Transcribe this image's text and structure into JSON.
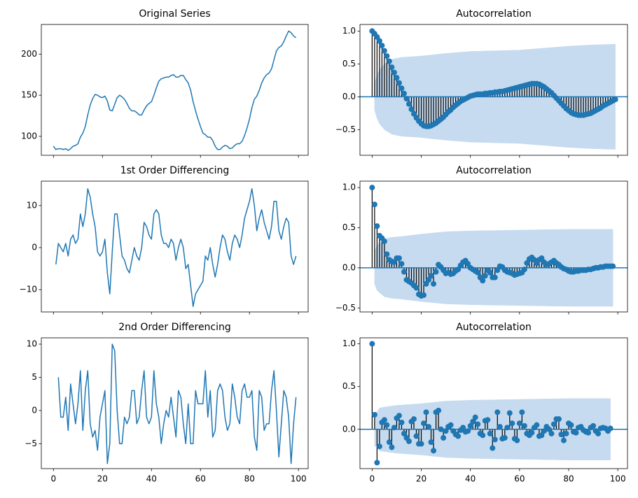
{
  "chart_data": [
    {
      "type": "line",
      "title": "Original Series",
      "color": "#1f77b4",
      "x": [
        0,
        1,
        2,
        3,
        4,
        5,
        6,
        7,
        8,
        9,
        10,
        11,
        12,
        13,
        14,
        15,
        16,
        17,
        18,
        19,
        20,
        21,
        22,
        23,
        24,
        25,
        26,
        27,
        28,
        29,
        30,
        31,
        32,
        33,
        34,
        35,
        36,
        37,
        38,
        39,
        40,
        41,
        42,
        43,
        44,
        45,
        46,
        47,
        48,
        49,
        50,
        51,
        52,
        53,
        54,
        55,
        56,
        57,
        58,
        59,
        60,
        61,
        62,
        63,
        64,
        65,
        66,
        67,
        68,
        69,
        70,
        71,
        72,
        73,
        74,
        75,
        76,
        77,
        78,
        79,
        80,
        81,
        82,
        83,
        84,
        85,
        86,
        87,
        88,
        89,
        90,
        91,
        92,
        93,
        94,
        95,
        96,
        97,
        98,
        99
      ],
      "values": [
        88,
        84,
        85,
        85,
        84,
        85,
        83,
        85,
        88,
        89,
        91,
        99,
        104,
        112,
        126,
        138,
        146,
        151,
        150,
        148,
        147,
        149,
        143,
        132,
        131,
        139,
        147,
        150,
        148,
        145,
        140,
        134,
        131,
        131,
        129,
        126,
        126,
        132,
        137,
        140,
        142,
        150,
        159,
        167,
        170,
        171,
        172,
        172,
        174,
        175,
        172,
        172,
        174,
        174,
        169,
        165,
        156,
        142,
        131,
        121,
        112,
        104,
        102,
        99,
        99,
        95,
        88,
        84,
        84,
        87,
        89,
        88,
        85,
        86,
        89,
        91,
        91,
        94,
        101,
        110,
        121,
        135,
        145,
        149,
        156,
        165,
        171,
        175,
        177,
        182,
        193,
        204,
        208,
        210,
        215,
        222,
        228,
        226,
        222,
        220
      ],
      "xlim": [
        -4.95,
        103.95
      ],
      "ylim": [
        77,
        236
      ],
      "xticks": [
        0,
        20,
        40,
        60,
        80,
        100
      ],
      "yticks": [
        100,
        150,
        200
      ],
      "show_xtick_labels": false
    },
    {
      "type": "stem",
      "title": "Autocorrelation",
      "color": "#1f77b4",
      "stem_color": "#000000",
      "x": [
        0,
        1,
        2,
        3,
        4,
        5,
        6,
        7,
        8,
        9,
        10,
        11,
        12,
        13,
        14,
        15,
        16,
        17,
        18,
        19,
        20,
        21,
        22,
        23,
        24,
        25,
        26,
        27,
        28,
        29,
        30,
        31,
        32,
        33,
        34,
        35,
        36,
        37,
        38,
        39,
        40,
        41,
        42,
        43,
        44,
        45,
        46,
        47,
        48,
        49,
        50,
        51,
        52,
        53,
        54,
        55,
        56,
        57,
        58,
        59,
        60,
        61,
        62,
        63,
        64,
        65,
        66,
        67,
        68,
        69,
        70,
        71,
        72,
        73,
        74,
        75,
        76,
        77,
        78,
        79,
        80,
        81,
        82,
        83,
        84,
        85,
        86,
        87,
        88,
        89,
        90,
        91,
        92,
        93,
        94,
        95,
        96,
        97,
        98,
        99
      ],
      "values": [
        1.0,
        0.96,
        0.91,
        0.85,
        0.78,
        0.7,
        0.62,
        0.54,
        0.45,
        0.37,
        0.29,
        0.21,
        0.13,
        0.05,
        -0.03,
        -0.11,
        -0.19,
        -0.26,
        -0.32,
        -0.37,
        -0.41,
        -0.44,
        -0.45,
        -0.45,
        -0.44,
        -0.42,
        -0.4,
        -0.37,
        -0.34,
        -0.31,
        -0.27,
        -0.23,
        -0.2,
        -0.16,
        -0.13,
        -0.1,
        -0.07,
        -0.05,
        -0.03,
        -0.01,
        0.01,
        0.02,
        0.03,
        0.04,
        0.04,
        0.04,
        0.05,
        0.05,
        0.06,
        0.06,
        0.07,
        0.07,
        0.08,
        0.08,
        0.09,
        0.1,
        0.11,
        0.12,
        0.13,
        0.14,
        0.15,
        0.16,
        0.17,
        0.18,
        0.19,
        0.2,
        0.2,
        0.2,
        0.19,
        0.17,
        0.15,
        0.12,
        0.09,
        0.06,
        0.02,
        -0.02,
        -0.06,
        -0.1,
        -0.14,
        -0.18,
        -0.21,
        -0.24,
        -0.26,
        -0.27,
        -0.28,
        -0.28,
        -0.28,
        -0.27,
        -0.26,
        -0.25,
        -0.23,
        -0.21,
        -0.19,
        -0.17,
        -0.14,
        -0.12,
        -0.1,
        -0.08,
        -0.06,
        -0.04
      ],
      "confint": {
        "color": "#c6dbef",
        "x": [
          1,
          2,
          3,
          5,
          8,
          12,
          20,
          30,
          40,
          50,
          60,
          70,
          80,
          90,
          99
        ],
        "values": [
          0.2,
          0.33,
          0.41,
          0.5,
          0.57,
          0.6,
          0.62,
          0.66,
          0.69,
          0.7,
          0.71,
          0.74,
          0.77,
          0.79,
          0.8
        ]
      },
      "xlim": [
        -4.95,
        103.95
      ],
      "ylim": [
        -0.89,
        1.1
      ],
      "xticks": [
        0,
        20,
        40,
        60,
        80,
        100
      ],
      "yticks": [
        {
          "value": -0.5,
          "label": "−0.5"
        },
        {
          "value": 0,
          "label": "0.0"
        },
        0.5,
        {
          "value": 1,
          "label": "1.0"
        }
      ],
      "show_xtick_labels": false
    },
    {
      "type": "line",
      "title": "1st Order Differencing",
      "color": "#1f77b4",
      "x": [
        1,
        2,
        3,
        4,
        5,
        6,
        7,
        8,
        9,
        10,
        11,
        12,
        13,
        14,
        15,
        16,
        17,
        18,
        19,
        20,
        21,
        22,
        23,
        24,
        25,
        26,
        27,
        28,
        29,
        30,
        31,
        32,
        33,
        34,
        35,
        36,
        37,
        38,
        39,
        40,
        41,
        42,
        43,
        44,
        45,
        46,
        47,
        48,
        49,
        50,
        51,
        52,
        53,
        54,
        55,
        56,
        57,
        58,
        59,
        60,
        61,
        62,
        63,
        64,
        65,
        66,
        67,
        68,
        69,
        70,
        71,
        72,
        73,
        74,
        75,
        76,
        77,
        78,
        79,
        80,
        81,
        82,
        83,
        84,
        85,
        86,
        87,
        88,
        89,
        90,
        91,
        92,
        93,
        94,
        95,
        96,
        97,
        98,
        99
      ],
      "values": [
        -4,
        1,
        0,
        -1,
        1,
        -2,
        2,
        3,
        1,
        2,
        8,
        5,
        8,
        14,
        12,
        8,
        5,
        -1,
        -2,
        -1,
        2,
        -6,
        -11,
        -1,
        8,
        8,
        3,
        -2,
        -3,
        -5,
        -6,
        -3,
        0,
        -2,
        -3,
        0,
        6,
        5,
        3,
        2,
        8,
        9,
        8,
        3,
        1,
        1,
        0,
        2,
        1,
        -3,
        0,
        2,
        0,
        -5,
        -4,
        -9,
        -14,
        -11,
        -10,
        -9,
        -8,
        -2,
        -3,
        0,
        -4,
        -7,
        -4,
        0,
        3,
        2,
        -1,
        -3,
        1,
        3,
        2,
        0,
        3,
        7,
        9,
        11,
        14,
        10,
        4,
        7,
        9,
        6,
        4,
        2,
        5,
        11,
        11,
        4,
        2,
        5,
        7,
        6,
        -2,
        -4,
        -2
      ],
      "xlim": [
        -4.95,
        103.95
      ],
      "ylim": [
        -15.3,
        15.8
      ],
      "xticks": [
        0,
        20,
        40,
        60,
        80,
        100
      ],
      "yticks": [
        {
          "value": -10,
          "label": "−10"
        },
        0,
        10
      ],
      "show_xtick_labels": false
    },
    {
      "type": "stem",
      "title": "Autocorrelation",
      "color": "#1f77b4",
      "stem_color": "#000000",
      "x": [
        0,
        1,
        2,
        3,
        4,
        5,
        6,
        7,
        8,
        9,
        10,
        11,
        12,
        13,
        14,
        15,
        16,
        17,
        18,
        19,
        20,
        21,
        22,
        23,
        24,
        25,
        26,
        27,
        28,
        29,
        30,
        31,
        32,
        33,
        34,
        35,
        36,
        37,
        38,
        39,
        40,
        41,
        42,
        43,
        44,
        45,
        46,
        47,
        48,
        49,
        50,
        51,
        52,
        53,
        54,
        55,
        56,
        57,
        58,
        59,
        60,
        61,
        62,
        63,
        64,
        65,
        66,
        67,
        68,
        69,
        70,
        71,
        72,
        73,
        74,
        75,
        76,
        77,
        78,
        79,
        80,
        81,
        82,
        83,
        84,
        85,
        86,
        87,
        88,
        89,
        90,
        91,
        92,
        93,
        94,
        95,
        96,
        97,
        98
      ],
      "values": [
        1.0,
        0.79,
        0.52,
        0.4,
        0.37,
        0.33,
        0.17,
        0.1,
        0.08,
        0.07,
        0.12,
        0.12,
        0.05,
        -0.05,
        -0.15,
        -0.17,
        -0.19,
        -0.22,
        -0.25,
        -0.33,
        -0.35,
        -0.34,
        -0.2,
        -0.15,
        -0.1,
        -0.2,
        -0.05,
        0.04,
        0.01,
        -0.03,
        -0.07,
        -0.06,
        -0.08,
        -0.07,
        -0.04,
        -0.02,
        0.03,
        0.07,
        0.09,
        0.05,
        0.0,
        -0.02,
        -0.04,
        -0.06,
        -0.12,
        -0.16,
        -0.1,
        -0.03,
        -0.06,
        -0.12,
        -0.12,
        -0.03,
        0.02,
        0.01,
        -0.03,
        -0.05,
        -0.06,
        -0.07,
        -0.09,
        -0.08,
        -0.07,
        -0.06,
        -0.02,
        0.06,
        0.11,
        0.13,
        0.1,
        0.06,
        0.1,
        0.12,
        0.07,
        0.04,
        0.05,
        0.07,
        0.09,
        0.06,
        0.04,
        0.01,
        -0.01,
        -0.02,
        -0.04,
        -0.05,
        -0.05,
        -0.04,
        -0.04,
        -0.03,
        -0.03,
        -0.03,
        -0.02,
        -0.02,
        -0.01,
        0.0,
        0.0,
        0.01,
        0.01,
        0.02,
        0.02,
        0.02,
        0.02
      ],
      "confint": {
        "color": "#c6dbef",
        "x": [
          1,
          2,
          3,
          5,
          8,
          12,
          20,
          30,
          40,
          60,
          80,
          98
        ],
        "values": [
          0.2,
          0.28,
          0.31,
          0.36,
          0.38,
          0.39,
          0.42,
          0.45,
          0.46,
          0.47,
          0.48,
          0.48
        ]
      },
      "xlim": [
        -4.95,
        103.95
      ],
      "ylim": [
        -0.55,
        1.08
      ],
      "xticks": [
        0,
        20,
        40,
        60,
        80,
        100
      ],
      "yticks": [
        {
          "value": -0.5,
          "label": "−0.5"
        },
        {
          "value": 0,
          "label": "0.0"
        },
        0.5,
        {
          "value": 1,
          "label": "1.0"
        }
      ],
      "show_xtick_labels": false
    },
    {
      "type": "line",
      "title": "2nd Order Differencing",
      "color": "#1f77b4",
      "x": [
        2,
        3,
        4,
        5,
        6,
        7,
        8,
        9,
        10,
        11,
        12,
        13,
        14,
        15,
        16,
        17,
        18,
        19,
        20,
        21,
        22,
        23,
        24,
        25,
        26,
        27,
        28,
        29,
        30,
        31,
        32,
        33,
        34,
        35,
        36,
        37,
        38,
        39,
        40,
        41,
        42,
        43,
        44,
        45,
        46,
        47,
        48,
        49,
        50,
        51,
        52,
        53,
        54,
        55,
        56,
        57,
        58,
        59,
        60,
        61,
        62,
        63,
        64,
        65,
        66,
        67,
        68,
        69,
        70,
        71,
        72,
        73,
        74,
        75,
        76,
        77,
        78,
        79,
        80,
        81,
        82,
        83,
        84,
        85,
        86,
        87,
        88,
        89,
        90,
        91,
        92,
        93,
        94,
        95,
        96,
        97,
        98,
        99
      ],
      "values": [
        5,
        -1,
        -1,
        2,
        -3,
        4,
        1,
        -2,
        1,
        6,
        -3,
        3,
        6,
        -2,
        -4,
        -3,
        -6,
        -1,
        1,
        3,
        -8,
        -5,
        10,
        9,
        0,
        -5,
        -5,
        -1,
        -2,
        -1,
        3,
        3,
        -2,
        -1,
        3,
        6,
        -1,
        -2,
        -1,
        6,
        1,
        -1,
        -5,
        -2,
        0,
        -1,
        2,
        -1,
        -4,
        3,
        2,
        -2,
        -5,
        1,
        -5,
        -5,
        3,
        1,
        1,
        1,
        6,
        -1,
        3,
        -4,
        -3,
        3,
        4,
        3,
        -1,
        -3,
        -2,
        4,
        2,
        -1,
        -2,
        3,
        4,
        2,
        2,
        3,
        -4,
        -6,
        3,
        2,
        -3,
        -2,
        -2,
        3,
        6,
        0,
        -7,
        -2,
        3,
        2,
        -1,
        -8,
        -2,
        2
      ],
      "xlim": [
        -4.95,
        103.95
      ],
      "ylim": [
        -8.76,
        10.95
      ],
      "xticks": [
        0,
        20,
        40,
        60,
        80,
        100
      ],
      "yticks": [
        {
          "value": -5,
          "label": "−5"
        },
        0,
        5,
        10
      ],
      "show_xtick_labels": true
    },
    {
      "type": "stem",
      "title": "Autocorrelation",
      "color": "#1f77b4",
      "stem_color": "#000000",
      "x": [
        0,
        1,
        2,
        3,
        4,
        5,
        6,
        7,
        8,
        9,
        10,
        11,
        12,
        13,
        14,
        15,
        16,
        17,
        18,
        19,
        20,
        21,
        22,
        23,
        24,
        25,
        26,
        27,
        28,
        29,
        30,
        31,
        32,
        33,
        34,
        35,
        36,
        37,
        38,
        39,
        40,
        41,
        42,
        43,
        44,
        45,
        46,
        47,
        48,
        49,
        50,
        51,
        52,
        53,
        54,
        55,
        56,
        57,
        58,
        59,
        60,
        61,
        62,
        63,
        64,
        65,
        66,
        67,
        68,
        69,
        70,
        71,
        72,
        73,
        74,
        75,
        76,
        77,
        78,
        79,
        80,
        81,
        82,
        83,
        84,
        85,
        86,
        87,
        88,
        89,
        90,
        91,
        92,
        93,
        94,
        95,
        96,
        97
      ],
      "values": [
        1.0,
        0.17,
        -0.39,
        -0.2,
        0.08,
        0.11,
        0.05,
        -0.15,
        -0.21,
        0.02,
        0.13,
        0.16,
        0.08,
        -0.05,
        -0.1,
        -0.14,
        0.09,
        0.12,
        -0.08,
        -0.17,
        -0.17,
        0.07,
        0.2,
        0.03,
        -0.15,
        -0.25,
        0.2,
        0.22,
        0.0,
        -0.1,
        -0.02,
        0.03,
        0.05,
        -0.02,
        -0.06,
        -0.08,
        -0.01,
        0.02,
        -0.03,
        -0.02,
        0.04,
        0.09,
        0.14,
        0.06,
        -0.05,
        -0.07,
        0.1,
        0.11,
        -0.05,
        -0.22,
        -0.12,
        0.2,
        0.03,
        -0.11,
        -0.1,
        0.02,
        0.19,
        0.07,
        -0.11,
        -0.13,
        0.07,
        0.2,
        0.04,
        -0.05,
        -0.07,
        -0.04,
        0.02,
        0.05,
        -0.08,
        -0.07,
        -0.02,
        0.03,
        0.0,
        -0.05,
        0.06,
        0.12,
        0.12,
        -0.06,
        -0.13,
        -0.05,
        0.07,
        0.05,
        -0.03,
        -0.04,
        0.02,
        0.03,
        -0.01,
        -0.03,
        -0.04,
        0.02,
        0.04,
        -0.02,
        -0.05,
        0.01,
        0.02,
        0.01,
        -0.02,
        0.01
      ],
      "confint": {
        "color": "#c6dbef",
        "x": [
          1,
          2,
          3,
          5,
          10,
          20,
          30,
          40,
          60,
          80,
          97
        ],
        "values": [
          0.2,
          0.2,
          0.25,
          0.26,
          0.28,
          0.3,
          0.33,
          0.34,
          0.35,
          0.36,
          0.36
        ]
      },
      "xlim": [
        -4.95,
        103.95
      ],
      "ylim": [
        -0.46,
        1.07
      ],
      "xticks": [
        0,
        20,
        40,
        60,
        80,
        100
      ],
      "yticks": [
        {
          "value": 0,
          "label": "0.0"
        },
        0.5,
        {
          "value": 1,
          "label": "1.0"
        }
      ],
      "show_xtick_labels": true
    }
  ]
}
